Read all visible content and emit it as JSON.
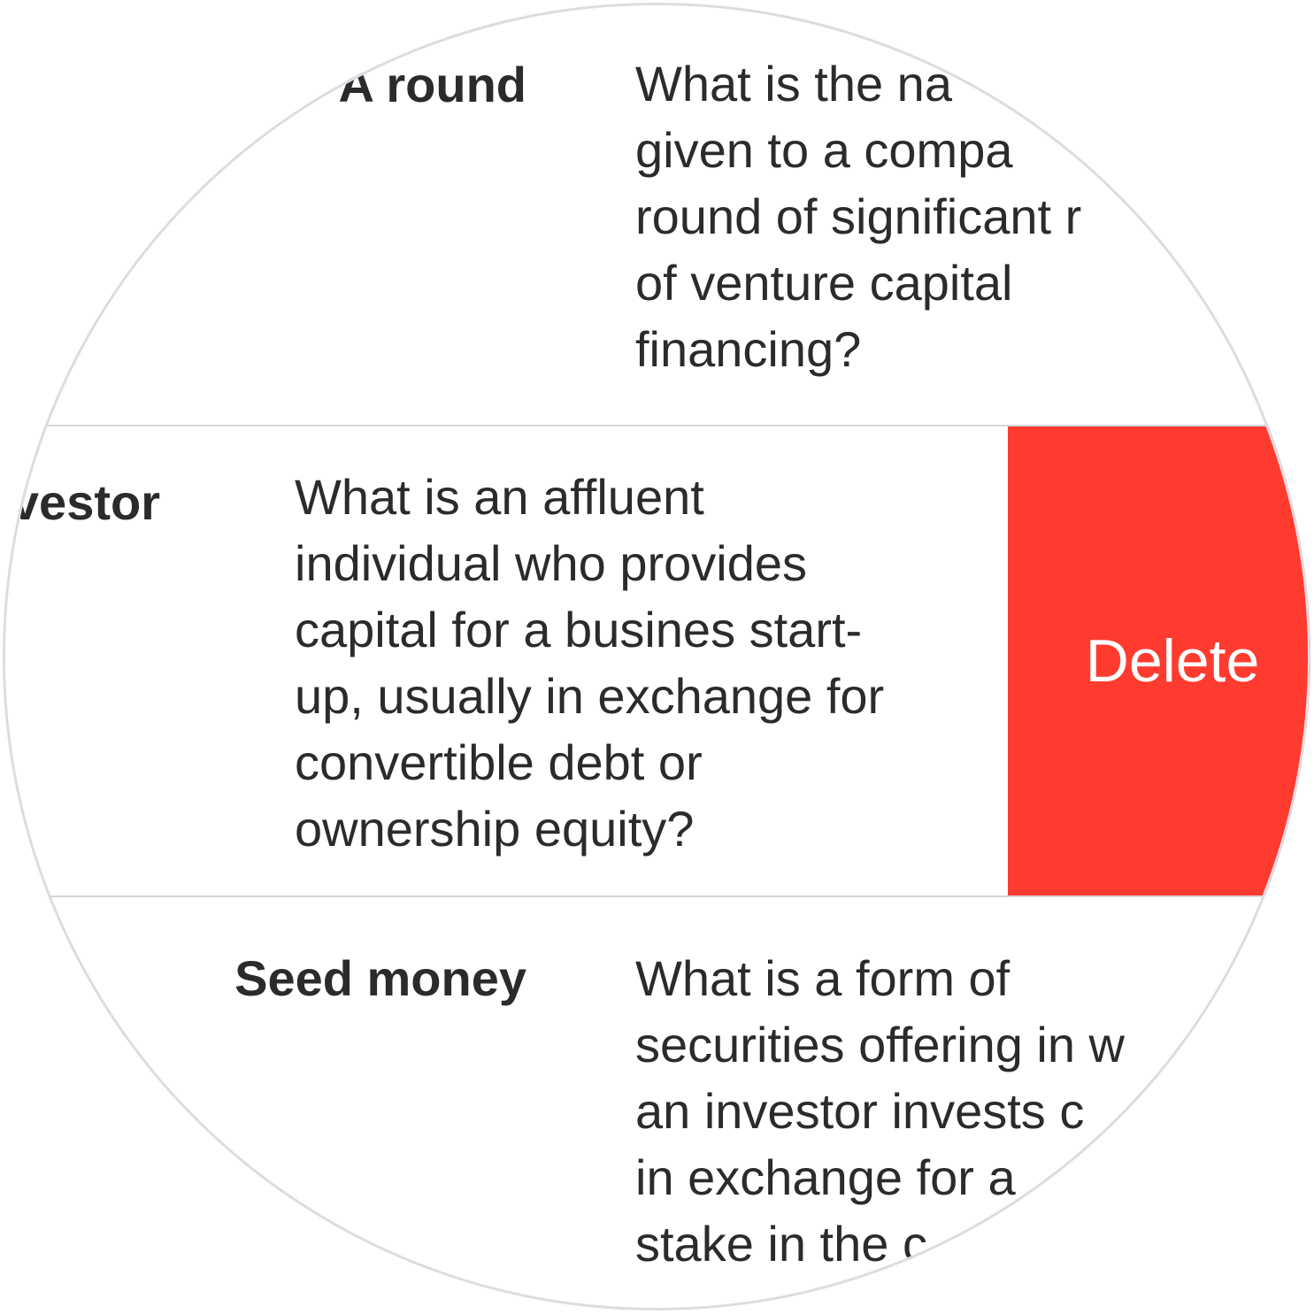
{
  "rows": [
    {
      "term": "A round",
      "definition_lines": [
        "What is the na",
        "given to a compa",
        "round of significant r",
        "of venture capital",
        "financing?"
      ]
    },
    {
      "term": "vestor",
      "definition_lines": [
        "What is an affluent",
        "individual who provides",
        "capital for a busines start-",
        "up, usually in exchange for",
        "convertible debt or",
        "ownership equity?"
      ],
      "action_label": "Delete"
    },
    {
      "term": "Seed money",
      "definition_lines": [
        "What is a form of",
        "securities offering in w",
        "an investor invests c",
        "in exchange for a",
        "stake in the c"
      ]
    }
  ],
  "colors": {
    "delete_action": "#ff3b30",
    "text": "#2b2b2d",
    "divider": "#d6d6d8",
    "lens_border": "#dcdce2"
  }
}
